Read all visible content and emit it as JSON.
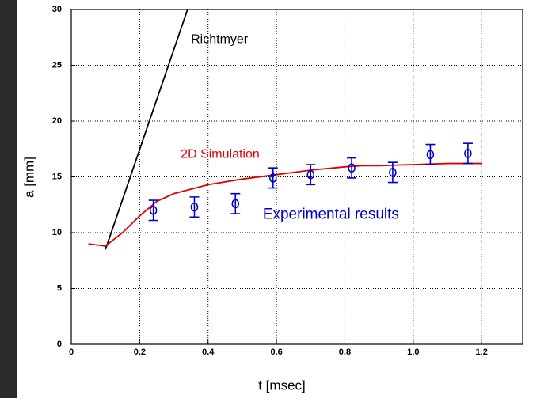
{
  "chart_data": {
    "type": "line",
    "xlabel": "t [msec]",
    "ylabel": "a [mm]",
    "xlim": [
      0,
      1.32
    ],
    "ylim": [
      0,
      30
    ],
    "xticks": [
      0,
      0.2,
      0.4,
      0.6,
      0.8,
      {
        "value": 1,
        "label": "1.0"
      },
      1.2
    ],
    "yticks": [
      0,
      5,
      10,
      15,
      20,
      25,
      30
    ],
    "grid": true,
    "annotations": [
      {
        "text": "Richtmyer",
        "x": 0.35,
        "y": 27.3,
        "color": "#000000"
      },
      {
        "text": "2D Simulation",
        "x": 0.32,
        "y": 17.0,
        "color": "#e00000"
      },
      {
        "text": "Experimental results",
        "x": 0.56,
        "y": 11.6,
        "color": "#0000cc"
      }
    ],
    "series": [
      {
        "name": "Richtmyer",
        "color": "#000000",
        "x": [
          0.1,
          0.34
        ],
        "values": [
          8.5,
          30
        ]
      },
      {
        "name": "2D Simulation",
        "color": "#e00000",
        "x": [
          0.05,
          0.1,
          0.15,
          0.2,
          0.25,
          0.3,
          0.4,
          0.5,
          0.6,
          0.7,
          0.8,
          0.85,
          0.9,
          1.0,
          1.1,
          1.2
        ],
        "values": [
          9,
          8.8,
          10,
          11.5,
          12.8,
          13.5,
          14.3,
          14.8,
          15.2,
          15.6,
          15.9,
          16,
          16,
          16.1,
          16.2,
          16.2
        ]
      },
      {
        "name": "Experimental results",
        "color": "#0000cc",
        "markers": true,
        "x": [
          0.24,
          0.36,
          0.48,
          0.59,
          0.7,
          0.82,
          0.94,
          1.05,
          1.16
        ],
        "values": [
          12.0,
          12.3,
          12.6,
          14.9,
          15.2,
          15.8,
          15.4,
          17.0,
          17.1
        ],
        "errors": [
          0.9,
          0.9,
          0.9,
          0.9,
          0.9,
          0.9,
          0.9,
          0.9,
          0.9
        ]
      }
    ]
  }
}
